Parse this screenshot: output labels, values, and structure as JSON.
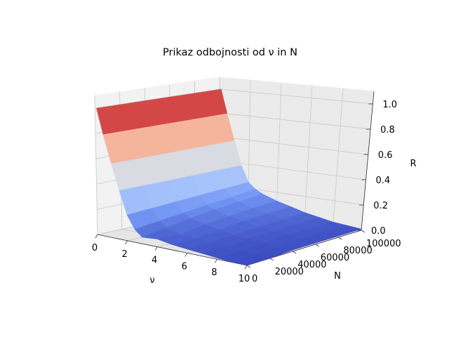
{
  "chart_data": {
    "type": "surface-3d",
    "title": "Prikaz odbojnosti od ν in N",
    "xlabel": "ν",
    "ylabel": "N",
    "zlabel": "R",
    "xlim": [
      0,
      10
    ],
    "ylim": [
      0,
      100000
    ],
    "zlim": [
      0,
      1.1
    ],
    "xticks": [
      0,
      2,
      4,
      6,
      8,
      10
    ],
    "xticklabels": [
      "0",
      "2",
      "4",
      "6",
      "8",
      "10"
    ],
    "yticks": [
      0,
      20000,
      40000,
      60000,
      80000,
      100000
    ],
    "yticklabels": [
      "0",
      "20000",
      "40000",
      "60000",
      "80000",
      "100000"
    ],
    "zticks": [
      0.0,
      0.2,
      0.4,
      0.6,
      0.8,
      1.0
    ],
    "zticklabels": [
      "0.0",
      "0.2",
      "0.4",
      "0.6",
      "0.8",
      "1.0"
    ],
    "colormap": "coolwarm",
    "colormap_stops": [
      "#3b4cc0",
      "#7396f5",
      "#b0cbfc",
      "#dddddd",
      "#f6bfa6",
      "#e7745b",
      "#b40426"
    ],
    "grid": true,
    "nu": [
      0.1,
      0.5,
      1,
      1.5,
      2,
      2.5,
      3,
      4,
      5,
      6,
      7,
      8,
      9,
      10
    ],
    "N": [
      0,
      20000,
      40000,
      60000,
      80000,
      100000
    ],
    "R": [
      [
        1.0,
        1.0,
        1.0,
        1.0,
        1.0,
        1.0
      ],
      [
        0.8,
        0.8,
        0.8,
        0.8,
        0.8,
        0.8
      ],
      [
        0.58,
        0.58,
        0.58,
        0.58,
        0.58,
        0.58
      ],
      [
        0.38,
        0.38,
        0.38,
        0.38,
        0.38,
        0.38
      ],
      [
        0.2,
        0.21,
        0.22,
        0.23,
        0.24,
        0.25
      ],
      [
        0.1,
        0.12,
        0.14,
        0.16,
        0.18,
        0.2
      ],
      [
        0.05,
        0.08,
        0.11,
        0.13,
        0.15,
        0.17
      ],
      [
        0.06,
        0.05,
        0.08,
        0.1,
        0.12,
        0.13
      ],
      [
        0.04,
        0.04,
        0.06,
        0.08,
        0.09,
        0.1
      ],
      [
        0.03,
        0.03,
        0.04,
        0.05,
        0.06,
        0.07
      ],
      [
        0.02,
        0.02,
        0.03,
        0.04,
        0.04,
        0.05
      ],
      [
        0.01,
        0.01,
        0.02,
        0.03,
        0.03,
        0.03
      ],
      [
        0.0,
        0.01,
        0.01,
        0.02,
        0.02,
        0.02
      ],
      [
        0.0,
        0.0,
        0.01,
        0.01,
        0.01,
        0.01
      ]
    ]
  }
}
